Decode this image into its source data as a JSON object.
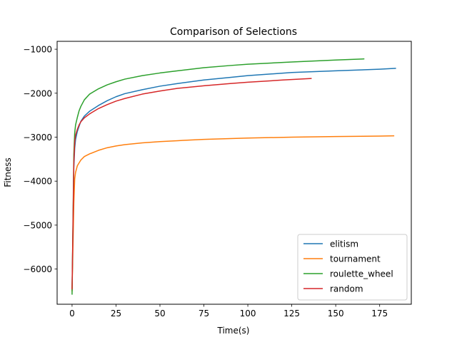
{
  "chart_data": {
    "type": "line",
    "title": "Comparison of Selections",
    "xlabel": "Time(s)",
    "ylabel": "Fitness",
    "xlim": [
      -8.5,
      193
    ],
    "ylim": [
      -6800,
      -820
    ],
    "xticks": [
      0,
      25,
      50,
      75,
      100,
      125,
      150,
      175
    ],
    "yticks": [
      -6000,
      -5000,
      -4000,
      -3000,
      -2000,
      -1000
    ],
    "xtick_labels": [
      "0",
      "25",
      "50",
      "75",
      "100",
      "125",
      "150",
      "175"
    ],
    "ytick_labels": [
      "−6000",
      "−5000",
      "−4000",
      "−3000",
      "−2000",
      "−1000"
    ],
    "grid": false,
    "legend_position": "lower-right",
    "series": [
      {
        "name": "elitism",
        "color": "#1f77b4",
        "points": [
          [
            0,
            -6480
          ],
          [
            0.5,
            -5200
          ],
          [
            1,
            -3700
          ],
          [
            1.5,
            -3250
          ],
          [
            2,
            -3050
          ],
          [
            3,
            -2870
          ],
          [
            4,
            -2750
          ],
          [
            5,
            -2640
          ],
          [
            7,
            -2520
          ],
          [
            10,
            -2410
          ],
          [
            15,
            -2280
          ],
          [
            20,
            -2170
          ],
          [
            25,
            -2080
          ],
          [
            30,
            -2010
          ],
          [
            40,
            -1920
          ],
          [
            50,
            -1840
          ],
          [
            60,
            -1780
          ],
          [
            75,
            -1700
          ],
          [
            90,
            -1640
          ],
          [
            100,
            -1600
          ],
          [
            125,
            -1530
          ],
          [
            150,
            -1490
          ],
          [
            175,
            -1455
          ],
          [
            184,
            -1435
          ]
        ]
      },
      {
        "name": "tournament",
        "color": "#ff7f0e",
        "points": [
          [
            0,
            -6500
          ],
          [
            0.5,
            -5500
          ],
          [
            1,
            -4500
          ],
          [
            1.5,
            -3950
          ],
          [
            2,
            -3800
          ],
          [
            3,
            -3650
          ],
          [
            5,
            -3520
          ],
          [
            7,
            -3440
          ],
          [
            10,
            -3380
          ],
          [
            15,
            -3300
          ],
          [
            20,
            -3240
          ],
          [
            25,
            -3200
          ],
          [
            30,
            -3170
          ],
          [
            40,
            -3130
          ],
          [
            50,
            -3100
          ],
          [
            60,
            -3080
          ],
          [
            75,
            -3050
          ],
          [
            100,
            -3020
          ],
          [
            125,
            -3000
          ],
          [
            150,
            -2985
          ],
          [
            175,
            -2975
          ],
          [
            183,
            -2970
          ]
        ]
      },
      {
        "name": "roulette_wheel",
        "color": "#2ca02c",
        "points": [
          [
            0,
            -6570
          ],
          [
            0.5,
            -5000
          ],
          [
            1,
            -3400
          ],
          [
            1.5,
            -2900
          ],
          [
            2,
            -2720
          ],
          [
            3,
            -2550
          ],
          [
            4,
            -2400
          ],
          [
            5,
            -2300
          ],
          [
            7,
            -2150
          ],
          [
            10,
            -2020
          ],
          [
            15,
            -1900
          ],
          [
            20,
            -1810
          ],
          [
            25,
            -1740
          ],
          [
            30,
            -1680
          ],
          [
            40,
            -1600
          ],
          [
            50,
            -1540
          ],
          [
            60,
            -1490
          ],
          [
            75,
            -1420
          ],
          [
            90,
            -1370
          ],
          [
            100,
            -1340
          ],
          [
            125,
            -1290
          ],
          [
            150,
            -1245
          ],
          [
            166,
            -1220
          ]
        ]
      },
      {
        "name": "random",
        "color": "#d62728",
        "points": [
          [
            0,
            -6450
          ],
          [
            0.5,
            -5100
          ],
          [
            1,
            -3600
          ],
          [
            1.5,
            -3100
          ],
          [
            2,
            -2950
          ],
          [
            3,
            -2820
          ],
          [
            4,
            -2720
          ],
          [
            5,
            -2650
          ],
          [
            7,
            -2560
          ],
          [
            10,
            -2470
          ],
          [
            15,
            -2350
          ],
          [
            20,
            -2260
          ],
          [
            25,
            -2180
          ],
          [
            30,
            -2120
          ],
          [
            40,
            -2020
          ],
          [
            50,
            -1950
          ],
          [
            60,
            -1890
          ],
          [
            75,
            -1830
          ],
          [
            90,
            -1780
          ],
          [
            100,
            -1750
          ],
          [
            120,
            -1700
          ],
          [
            136,
            -1665
          ]
        ]
      }
    ]
  }
}
